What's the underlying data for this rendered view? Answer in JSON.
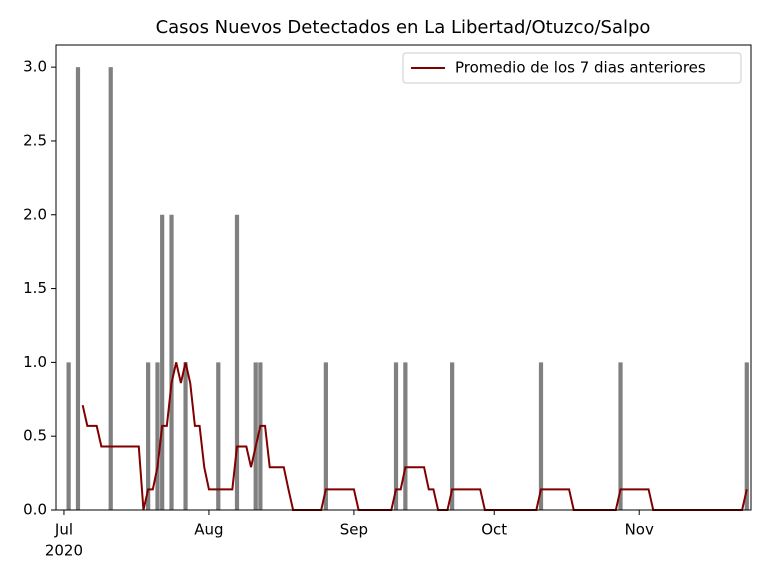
{
  "chart_data": {
    "type": "bar",
    "title": "Casos Nuevos Detectados en La Libertad/Otuzco/Salpo",
    "xlim": [
      -1.7,
      146.9
    ],
    "xticks": [
      {
        "value": 0,
        "label": "Jul"
      },
      {
        "value": 31,
        "label": "Aug"
      },
      {
        "value": 62,
        "label": "Sep"
      },
      {
        "value": 92,
        "label": "Oct"
      },
      {
        "value": 123,
        "label": "Nov"
      }
    ],
    "year_label": "2020",
    "ylim": [
      0,
      3.15
    ],
    "yticks": [
      {
        "value": 0,
        "label": "0.0"
      },
      0.5,
      {
        "value": 1,
        "label": "1.0"
      },
      1.5,
      {
        "value": 2,
        "label": "2.0"
      },
      2.5,
      {
        "value": 3,
        "label": "3.0"
      }
    ],
    "legend": "upper right",
    "series": [
      {
        "type": "bar",
        "color": "#808080",
        "x": [
          1,
          3,
          10,
          18,
          20,
          21,
          23,
          26,
          33,
          37,
          41,
          42,
          56,
          71,
          73,
          83,
          102,
          119,
          146
        ],
        "values": [
          1,
          3,
          3,
          1,
          1,
          2,
          2,
          1,
          1,
          2,
          1,
          1,
          1,
          1,
          1,
          1,
          1,
          1,
          1
        ]
      },
      {
        "type": "line",
        "name": "Promedio de los 7 dias anteriores",
        "color": "#800000",
        "x": [
          4,
          5,
          6,
          7,
          8,
          9,
          10,
          11,
          12,
          13,
          14,
          15,
          16,
          17,
          18,
          19,
          20,
          21,
          22,
          23,
          24,
          25,
          26,
          27,
          28,
          29,
          30,
          31,
          32,
          33,
          34,
          35,
          36,
          37,
          38,
          39,
          40,
          41,
          42,
          43,
          44,
          45,
          46,
          47,
          48,
          49,
          50,
          51,
          52,
          53,
          54,
          55,
          56,
          57,
          58,
          59,
          60,
          61,
          62,
          63,
          64,
          65,
          66,
          67,
          68,
          69,
          70,
          71,
          72,
          73,
          74,
          75,
          76,
          77,
          78,
          79,
          80,
          81,
          82,
          83,
          84,
          85,
          86,
          87,
          88,
          89,
          90,
          91,
          92,
          93,
          94,
          95,
          96,
          97,
          98,
          99,
          100,
          101,
          102,
          103,
          104,
          105,
          106,
          107,
          108,
          109,
          110,
          111,
          112,
          113,
          114,
          115,
          116,
          117,
          118,
          119,
          120,
          121,
          122,
          123,
          124,
          125,
          126,
          127,
          128,
          129,
          130,
          131,
          132,
          133,
          134,
          135,
          136,
          137,
          138,
          139,
          140,
          141,
          142,
          143,
          144,
          145,
          146
        ],
        "values": [
          0.71,
          0.57,
          0.57,
          0.57,
          0.43,
          0.43,
          0.43,
          0.43,
          0.43,
          0.43,
          0.43,
          0.43,
          0.43,
          0,
          0.14,
          0.14,
          0.29,
          0.57,
          0.57,
          0.86,
          1.0,
          0.86,
          1.0,
          0.86,
          0.57,
          0.57,
          0.29,
          0.14,
          0.14,
          0.14,
          0.14,
          0.14,
          0.14,
          0.43,
          0.43,
          0.43,
          0.29,
          0.43,
          0.57,
          0.57,
          0.29,
          0.29,
          0.29,
          0.29,
          0.14,
          0,
          0,
          0,
          0,
          0,
          0,
          0,
          0.14,
          0.14,
          0.14,
          0.14,
          0.14,
          0.14,
          0.14,
          0,
          0,
          0,
          0,
          0,
          0,
          0,
          0,
          0.14,
          0.14,
          0.29,
          0.29,
          0.29,
          0.29,
          0.29,
          0.14,
          0.14,
          0,
          0,
          0,
          0.14,
          0.14,
          0.14,
          0.14,
          0.14,
          0.14,
          0.14,
          0,
          0,
          0,
          0,
          0,
          0,
          0,
          0,
          0,
          0,
          0,
          0,
          0.14,
          0.14,
          0.14,
          0.14,
          0.14,
          0.14,
          0.14,
          0,
          0,
          0,
          0,
          0,
          0,
          0,
          0,
          0,
          0,
          0.14,
          0.14,
          0.14,
          0.14,
          0.14,
          0.14,
          0.14,
          0,
          0,
          0,
          0,
          0,
          0,
          0,
          0,
          0,
          0,
          0,
          0,
          0,
          0,
          0,
          0,
          0,
          0,
          0,
          0,
          0.14
        ]
      }
    ]
  }
}
